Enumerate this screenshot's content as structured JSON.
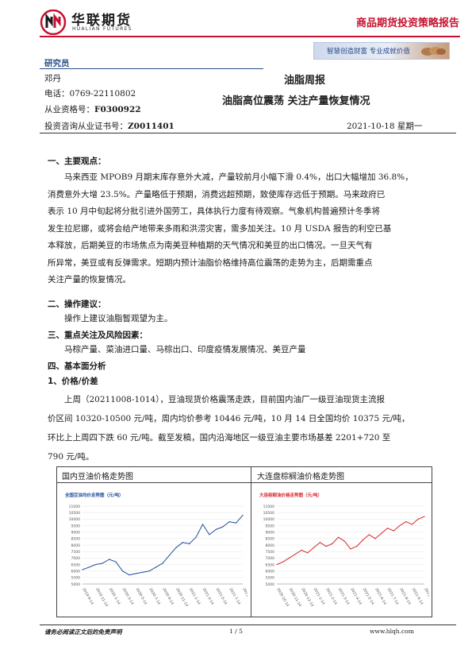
{
  "header": {
    "brand_cn": "华联期货",
    "brand_en": "HUALIAN FUTURES",
    "report_type": "商品期货投资策略报告",
    "slogan": "智慧创造财富 专业成就价值",
    "colors": {
      "brand_red": "#c8102e",
      "accent_blue": "#2b4f8a"
    }
  },
  "researcher": {
    "label": "研究员",
    "name": "邓丹",
    "phone_label": "电话：",
    "phone": "0769-22110802",
    "qual_label": "从业资格号：",
    "qual": "F0300922",
    "consult_label": "投资咨询从业证书号：",
    "consult": "Z0011401"
  },
  "report": {
    "type": "油脂周报",
    "title": "油脂高位震荡 关注产量恢复情况",
    "date": "2021-10-18 星期一"
  },
  "sections": {
    "s1_title": "一、主要观点：",
    "s1_lines": [
      "马来西亚 MPOB9 月期末库存意外大减，产量较前月小幅下滑 0.4%，出口大幅增加 36.8%，",
      "消费意外大增 23.5%。产量略低于预期，消费远超预期，致使库存远低于预期。马来政府已",
      "表示 10 月中旬起将分批引进外国劳工，具体执行力度有待观察。气象机构普遍预计冬季将",
      "发生拉尼娜，或将会给产地带来多雨和洪涝灾害，需多加关注。10 月 USDA 报告的利空已基",
      "本释放，后期美豆的市场焦点为南美豆种植期的天气情况和美豆的出口情况。一旦天气有",
      "所异常，美豆或有反弹需求。短期内预计油脂价格维持高位震荡的走势为主，后期需重点",
      "关注产量的恢复情况。"
    ],
    "s2_title": "二、操作建议：",
    "s2_text": "操作上建议油脂暂观望为主。",
    "s3_title": "三、重点关注及风险因素：",
    "s3_text": "马棕产量、菜油进口量、马棕出口、印度疫情发展情况、美豆产量",
    "s4_title": "四、基本面分析",
    "s4_sub": "1、价格/价差",
    "s4_lines": [
      "上周（20211008-1014），豆油现货价格震荡走跌，目前国内油厂一级豆油现货主流报",
      "价区间 10320-10500 元/吨，周内均价参考 10446 元/吨，10 月 14 日全国均价 10375 元/吨，",
      "环比上上周四下跌 60 元/吨。截至发稿，国内沿海地区一级豆油主要市场基差 2201+720 至",
      "790 元/吨。"
    ]
  },
  "charts_panel": {
    "left_title": "国内豆油价格走势图",
    "right_title": "大连盘棕榈油价格走势图"
  },
  "chart_data": [
    {
      "type": "line",
      "title": "全国豆油均价走势图（元/吨）",
      "ylim": [
        5000,
        11000
      ],
      "yticks": [
        "5000",
        "5500",
        "6000",
        "6500",
        "7000",
        "7500",
        "8000",
        "8500",
        "9000",
        "9500",
        "10000",
        "10500",
        "11000"
      ],
      "xticks": [
        "2019-9-14",
        "2019-11-14",
        "2020-1-14",
        "2020-3-14",
        "2020-5-14",
        "2020-7-14",
        "2020-9-14",
        "2020-11-14",
        "2021-1-14",
        "2021-3-14",
        "2021-5-14",
        "2021-7-14",
        "2021-9-14"
      ],
      "x_index": [
        0,
        3,
        6,
        9,
        12,
        15,
        18,
        21,
        24,
        27,
        30,
        33,
        36,
        39,
        42,
        45,
        48,
        51,
        54,
        57,
        60,
        63,
        66,
        69,
        72
      ],
      "values": [
        6100,
        6300,
        6500,
        6600,
        6900,
        6700,
        6000,
        5700,
        5800,
        5900,
        6000,
        6300,
        6600,
        7200,
        7800,
        8200,
        8100,
        8600,
        9600,
        8800,
        9200,
        9400,
        9800,
        9700,
        10300
      ],
      "series_color": "#1f4e9c"
    },
    {
      "type": "line",
      "title": "大连棕榈油价格走势图（元/吨）",
      "ylim": [
        5000,
        11000
      ],
      "yticks": [
        "5000",
        "5500",
        "6000",
        "6500",
        "7000",
        "7500",
        "8000",
        "8500",
        "9000",
        "9500",
        "10000",
        "10500",
        "11000"
      ],
      "xticks": [
        "2020-10-14",
        "2020-11-14",
        "2020-12-14",
        "2021-1-14",
        "2021-2-14",
        "2021-3-14",
        "2021-4-14",
        "2021-5-14",
        "2021-6-14",
        "2021-7-14",
        "2021-8-14",
        "2021-9-14",
        "2021-10-14"
      ],
      "x_index": [
        0,
        3,
        6,
        9,
        12,
        15,
        18,
        21,
        24,
        27,
        30,
        33,
        36,
        39,
        42,
        45,
        48,
        51,
        54,
        57,
        60,
        63,
        66,
        69,
        72
      ],
      "values": [
        6500,
        6700,
        7000,
        7300,
        7600,
        7400,
        7800,
        8200,
        7900,
        8100,
        8600,
        8300,
        7700,
        7900,
        8400,
        8800,
        8500,
        8900,
        9300,
        9100,
        9500,
        9800,
        9600,
        10000,
        10200
      ],
      "series_color": "#d9252e"
    }
  ],
  "footer": {
    "disclaimer": "请务必阅读正文后的免责声明",
    "page": "1 / 5",
    "site": "www.hlqh.com"
  }
}
